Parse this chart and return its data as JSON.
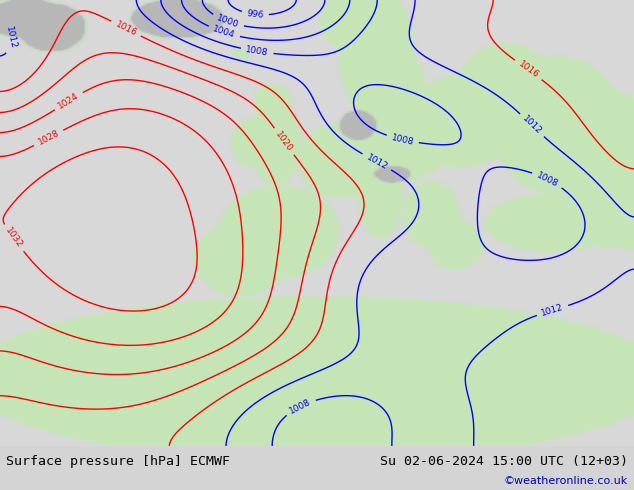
{
  "title_left": "Surface pressure [hPa] ECMWF",
  "title_right": "Su 02-06-2024 15:00 UTC (12+03)",
  "credit": "©weatheronline.co.uk",
  "ocean_color": "#d8d8d8",
  "land_color_r": 0.78,
  "land_color_g": 0.9,
  "land_color_b": 0.72,
  "gray_r": 0.72,
  "gray_g": 0.72,
  "gray_b": 0.72,
  "fig_width": 6.34,
  "fig_height": 4.9,
  "dpi": 100,
  "bottom_bg": "#d4d4d4"
}
